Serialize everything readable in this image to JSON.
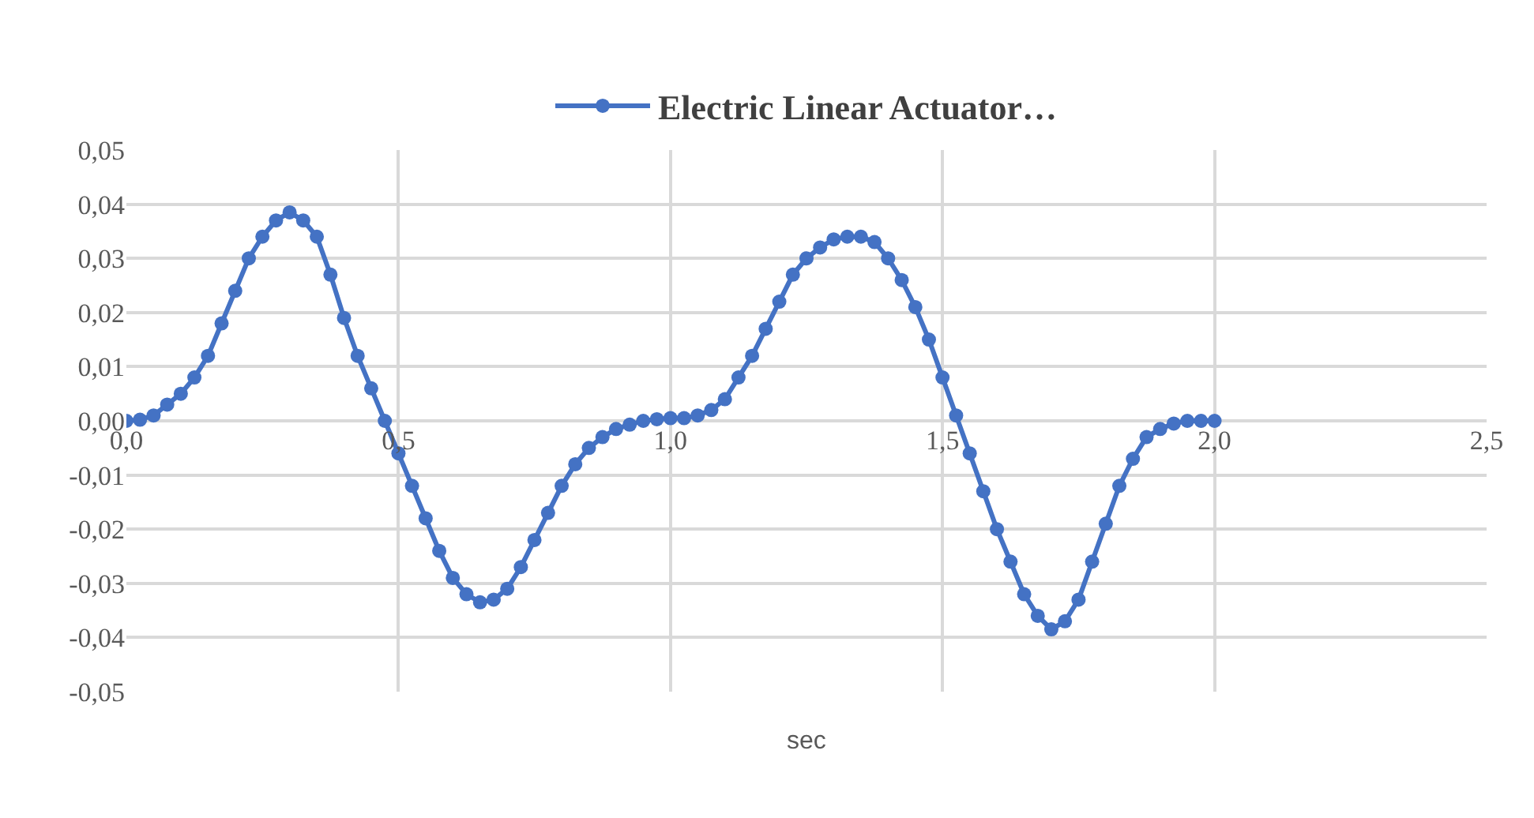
{
  "chart_data": {
    "type": "line",
    "xlabel": "sec",
    "x": [
      0,
      0.025,
      0.05,
      0.075,
      0.1,
      0.125,
      0.15,
      0.175,
      0.2,
      0.225,
      0.25,
      0.275,
      0.3,
      0.325,
      0.35,
      0.375,
      0.4,
      0.425,
      0.45,
      0.475,
      0.5,
      0.525,
      0.55,
      0.575,
      0.6,
      0.625,
      0.65,
      0.675,
      0.7,
      0.725,
      0.75,
      0.775,
      0.8,
      0.825,
      0.85,
      0.875,
      0.9,
      0.925,
      0.95,
      0.975,
      1.0,
      1.025,
      1.05,
      1.075,
      1.1,
      1.125,
      1.15,
      1.175,
      1.2,
      1.225,
      1.25,
      1.275,
      1.3,
      1.325,
      1.35,
      1.375,
      1.4,
      1.425,
      1.45,
      1.475,
      1.5,
      1.525,
      1.55,
      1.575,
      1.6,
      1.625,
      1.65,
      1.675,
      1.7,
      1.725,
      1.75,
      1.775,
      1.8,
      1.825,
      1.85,
      1.875,
      1.9,
      1.925,
      1.95,
      1.975,
      2.0
    ],
    "series": [
      {
        "name": "Electric Linear Actuator…",
        "color": "#4472c4",
        "values": [
          0,
          0.0002,
          0.001,
          0.003,
          0.005,
          0.008,
          0.012,
          0.018,
          0.024,
          0.03,
          0.034,
          0.037,
          0.0385,
          0.037,
          0.034,
          0.027,
          0.019,
          0.012,
          0.006,
          0.0,
          -0.006,
          -0.012,
          -0.018,
          -0.024,
          -0.029,
          -0.032,
          -0.0335,
          -0.033,
          -0.031,
          -0.027,
          -0.022,
          -0.017,
          -0.012,
          -0.008,
          -0.005,
          -0.003,
          -0.0015,
          -0.0007,
          0,
          0.0003,
          0.0005,
          0.0005,
          0.001,
          0.002,
          0.004,
          0.008,
          0.012,
          0.017,
          0.022,
          0.027,
          0.03,
          0.032,
          0.0335,
          0.034,
          0.034,
          0.033,
          0.03,
          0.026,
          0.021,
          0.015,
          0.008,
          0.001,
          -0.006,
          -0.013,
          -0.02,
          -0.026,
          -0.032,
          -0.036,
          -0.0385,
          -0.037,
          -0.033,
          -0.026,
          -0.019,
          -0.012,
          -0.007,
          -0.003,
          -0.0015,
          -0.0005,
          0,
          0,
          0
        ]
      }
    ],
    "xlim": [
      0,
      2.5
    ],
    "xticks": [
      {
        "value": 0,
        "label": "0,0"
      },
      {
        "value": 0.5,
        "label": "0,5"
      },
      {
        "value": 1.0,
        "label": "1,0"
      },
      {
        "value": 1.5,
        "label": "1,5"
      },
      {
        "value": 2.0,
        "label": "2,0"
      },
      {
        "value": 2.5,
        "label": "2,5"
      }
    ],
    "ylim": [
      -0.05,
      0.05
    ],
    "yticks": [
      {
        "value": 0.05,
        "label": "0,05"
      },
      {
        "value": 0.04,
        "label": "0,04"
      },
      {
        "value": 0.03,
        "label": "0,03"
      },
      {
        "value": 0.02,
        "label": "0,02"
      },
      {
        "value": 0.01,
        "label": "0,01"
      },
      {
        "value": 0,
        "label": "0,00"
      },
      {
        "value": -0.01,
        "label": "-0,01"
      },
      {
        "value": -0.02,
        "label": "-0,02"
      },
      {
        "value": -0.03,
        "label": "-0,03"
      },
      {
        "value": -0.04,
        "label": "-0,04"
      },
      {
        "value": -0.05,
        "label": "-0,05"
      }
    ],
    "grid": true,
    "legend": "top",
    "marker": "circle",
    "line_style": "solid"
  }
}
